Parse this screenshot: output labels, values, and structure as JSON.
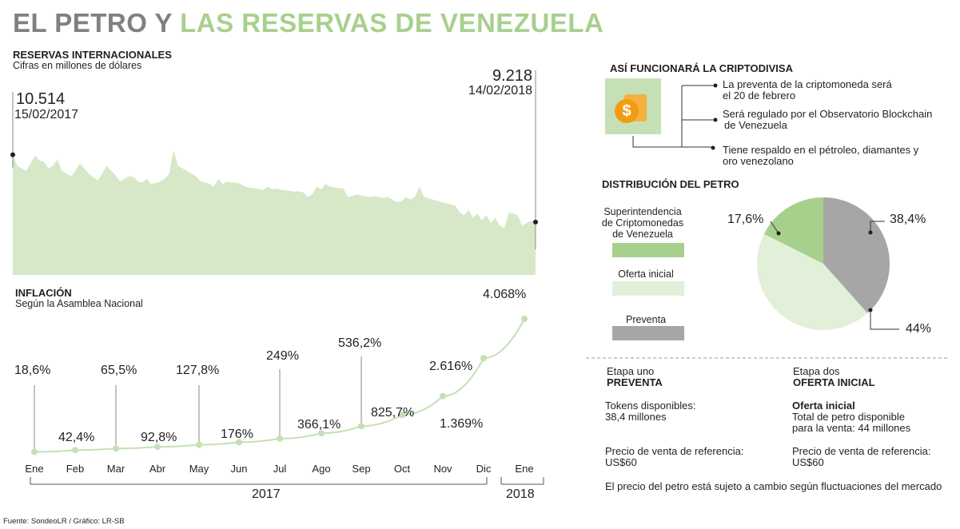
{
  "title": {
    "part1": "EL PETRO Y",
    "part2": "LAS RESERVAS DE VENEZUELA"
  },
  "colors": {
    "green_light": "#d6e8c8",
    "green": "#a8d08d",
    "green_pale": "#e2efd9",
    "gray": "#a6a6a6",
    "title_gray": "#808080"
  },
  "reserves": {
    "title": "RESERVAS INTERNACIONALES",
    "subtitle": "Cifras en millones de dólares",
    "start_value": "10.514",
    "start_date": "15/02/2017",
    "end_value": "9.218",
    "end_date": "14/02/2018"
  },
  "inflation": {
    "title": "INFLACIÓN",
    "subtitle": "Según la Asamblea Nacional",
    "year_2017": "2017",
    "year_2018": "2018"
  },
  "crypto": {
    "title": "ASÍ FUNCIONARÁ LA CRIPTODIVISA",
    "icon": "dollar-coins-icon",
    "items": [
      {
        "line1": "La preventa de la criptomoneda será",
        "line2": "el 20 de febrero"
      },
      {
        "line1": "Será regulado por el Observatorio Blockchain",
        "line2": "de Venezuela"
      },
      {
        "line1": "Tiene respaldo en el pétroleo, diamantes y",
        "line2": "oro venezolano"
      }
    ]
  },
  "distribution": {
    "title": "DISTRIBUCIÓN DEL PETRO",
    "legend": [
      {
        "line1": "Superintendencia",
        "line2": "de Criptomonedas",
        "line3": "de Venezuela",
        "color": "#a8d08d"
      },
      {
        "line1": "Oferta inicial",
        "color": "#e2efd9"
      },
      {
        "line1": "Preventa",
        "color": "#a6a6a6"
      }
    ]
  },
  "stages": {
    "left": {
      "header1": "Etapa uno",
      "header2": "PREVENTA",
      "l1": "Tokens disponibles:",
      "l2": "38,4 millones",
      "l3": "Precio de venta de referencia:",
      "l4": "US$60"
    },
    "right": {
      "header1": "Etapa dos",
      "header2": "OFERTA INICIAL",
      "l1": "Oferta inicial",
      "l2": "Total de petro disponible",
      "l3": "para la venta: 44 millones",
      "l4": "Precio de venta de referencia:",
      "l5": "US$60"
    },
    "note": "El precio del petro está sujeto a cambio según fluctuaciones del mercado"
  },
  "source": "Fuente: SondeoLR / Gráfico: LR-SB",
  "chart_data": [
    {
      "type": "area",
      "title": "RESERVAS INTERNACIONALES",
      "unit": "millones de dólares",
      "x": [
        "15/02/2017",
        "14/02/2018"
      ],
      "start": 10514,
      "end": 9218,
      "profile": [
        10514,
        10300,
        10250,
        10200,
        10350,
        10500,
        10400,
        10380,
        10250,
        10300,
        10420,
        10200,
        10150,
        10100,
        10200,
        10350,
        10250,
        10150,
        10080,
        10020,
        10150,
        10300,
        10200,
        10120,
        10000,
        10050,
        10100,
        10080,
        10000,
        9980,
        10050,
        9950,
        9970,
        10000,
        10050,
        10150,
        10600,
        10300,
        10250,
        10200,
        10150,
        10100,
        10000,
        9980,
        9950,
        9900,
        10050,
        9950,
        10000,
        9980,
        9970,
        9950,
        9900,
        9880,
        9870,
        9850,
        9830,
        9900,
        9850,
        9860,
        9840,
        9830,
        9820,
        9800,
        9810,
        9790,
        9700,
        9750,
        9900,
        9850,
        9950,
        9900,
        9880,
        9870,
        9860,
        9700,
        9720,
        9750,
        9730,
        9710,
        9700,
        9720,
        9690,
        9680,
        9700,
        9650,
        9600,
        9620,
        9700,
        9650,
        9700,
        9900,
        9700,
        9680,
        9650,
        9630,
        9600,
        9580,
        9560,
        9540,
        9400,
        9350,
        9450,
        9300,
        9380,
        9250,
        9350,
        9200,
        9300,
        9150,
        9100,
        9400,
        9380,
        9350,
        9150,
        9200,
        9240,
        9218
      ]
    },
    {
      "type": "line",
      "title": "INFLACIÓN",
      "categories": [
        "Ene",
        "Feb",
        "Mar",
        "Abr",
        "May",
        "Jun",
        "Jul",
        "Ago",
        "Sep",
        "Oct",
        "Nov",
        "Dic",
        "Ene"
      ],
      "values": [
        18.6,
        42.4,
        65.5,
        92.8,
        127.8,
        176,
        249,
        366.1,
        536.2,
        825.7,
        1369,
        2616,
        4068
      ],
      "labels": [
        "18,6%",
        "42,4%",
        "65,5%",
        "92,8%",
        "127,8%",
        "176%",
        "249%",
        "366,1%",
        "536,2%",
        "825,7%",
        "1.369%",
        "2.616%",
        "4.068%"
      ]
    },
    {
      "type": "pie",
      "title": "DISTRIBUCIÓN DEL PETRO",
      "series": [
        {
          "name": "Superintendencia de Criptomonedas de Venezuela",
          "value": 17.6,
          "label": "17,6%",
          "color": "#a8d08d"
        },
        {
          "name": "Oferta inicial",
          "value": 44,
          "label": "44%",
          "color": "#e2efd9"
        },
        {
          "name": "Preventa",
          "value": 38.4,
          "label": "38,4%",
          "color": "#a6a6a6"
        }
      ]
    }
  ]
}
